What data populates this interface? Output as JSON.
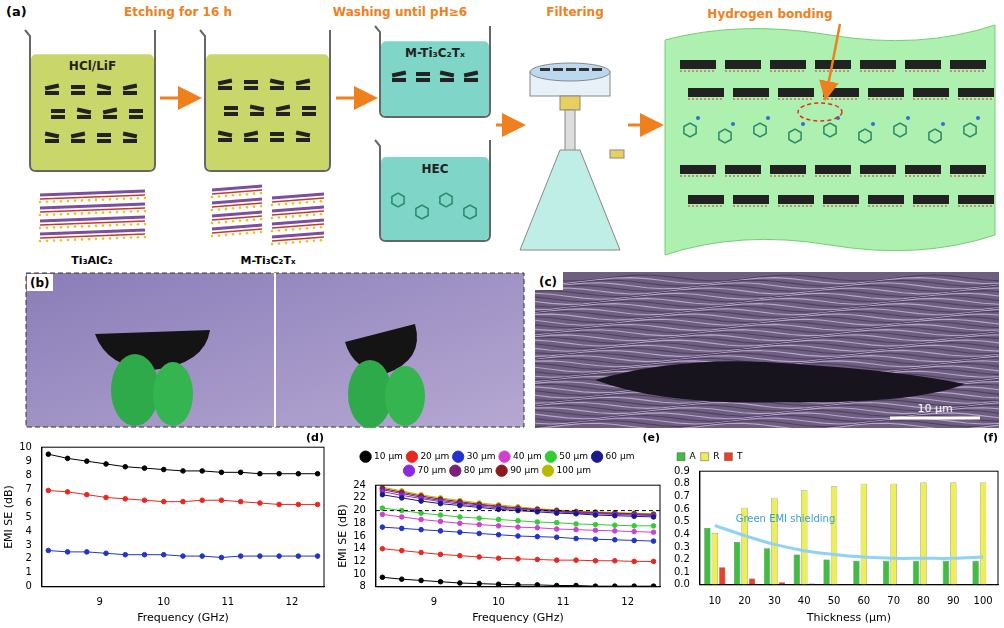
{
  "diagram": {
    "label": "(a)",
    "steps": [
      "Etching for 16 h",
      "Washing until pH≥6",
      "Filtering"
    ],
    "beakers": [
      "HCl/LiF",
      "M-Ti₃C₂Tₓ",
      "HEC"
    ],
    "materials": [
      "Ti₃AlC₂",
      "M-Ti₃C₂Tₓ"
    ],
    "annotation": "Hydrogen bonding"
  },
  "photo": {
    "label": "(b)"
  },
  "micrograph": {
    "label": "(c)",
    "scale_bar": "10 μm"
  },
  "chart_data": [
    {
      "type": "line",
      "title": "(d)",
      "xlabel": "Frequency (GHz)",
      "ylabel": "EMI SE (dB)",
      "x": [
        8.2,
        8.5,
        8.8,
        9.1,
        9.4,
        9.7,
        10.0,
        10.3,
        10.6,
        10.9,
        11.2,
        11.5,
        11.8,
        12.1,
        12.4
      ],
      "xlim": [
        8.1,
        12.5
      ],
      "xticks": [
        9,
        10,
        11,
        12
      ],
      "ylim": [
        0,
        10
      ],
      "yticks": [
        0,
        1,
        2,
        3,
        4,
        5,
        6,
        7,
        8,
        9,
        10
      ],
      "grid": false,
      "marker": "circle",
      "series": [
        {
          "color": "#000000",
          "values": [
            9.5,
            9.2,
            9.0,
            8.8,
            8.6,
            8.5,
            8.4,
            8.3,
            8.3,
            8.2,
            8.2,
            8.1,
            8.1,
            8.1,
            8.1
          ]
        },
        {
          "color": "#e8281e",
          "values": [
            6.9,
            6.8,
            6.6,
            6.4,
            6.3,
            6.2,
            6.1,
            6.1,
            6.2,
            6.2,
            6.1,
            6.0,
            5.9,
            5.9,
            5.9
          ]
        },
        {
          "color": "#2233cc",
          "values": [
            2.6,
            2.5,
            2.5,
            2.4,
            2.3,
            2.3,
            2.3,
            2.2,
            2.2,
            2.1,
            2.2,
            2.2,
            2.2,
            2.2,
            2.2
          ]
        }
      ]
    },
    {
      "type": "line",
      "title": "(e)",
      "xlabel": "Frequency (GHz)",
      "ylabel": "EMI SE (dB)",
      "x": [
        8.2,
        8.5,
        8.8,
        9.1,
        9.4,
        9.7,
        10.0,
        10.3,
        10.6,
        10.9,
        11.2,
        11.5,
        11.8,
        12.1,
        12.4
      ],
      "xlim": [
        8.1,
        12.5
      ],
      "xticks": [
        9,
        10,
        11,
        12
      ],
      "ylim": [
        8,
        24
      ],
      "yticks": [
        8,
        10,
        12,
        14,
        16,
        18,
        20,
        22,
        24
      ],
      "grid": false,
      "marker": "circle",
      "legend": "top",
      "reference_line": 20,
      "series": [
        {
          "name": "10 μm",
          "color": "#000000",
          "values": [
            9.5,
            9.2,
            9.0,
            8.8,
            8.6,
            8.5,
            8.4,
            8.3,
            8.3,
            8.2,
            8.2,
            8.1,
            8.1,
            8.1,
            8.1
          ]
        },
        {
          "name": "20 μm",
          "color": "#e8281e",
          "values": [
            14.0,
            13.7,
            13.4,
            13.1,
            12.9,
            12.7,
            12.5,
            12.4,
            12.3,
            12.2,
            12.2,
            12.1,
            12.1,
            12.0,
            12.0
          ]
        },
        {
          "name": "30 μm",
          "color": "#2233cc",
          "values": [
            17.4,
            17.2,
            17.0,
            16.8,
            16.6,
            16.4,
            16.2,
            16.0,
            15.9,
            15.8,
            15.6,
            15.5,
            15.4,
            15.3,
            15.2
          ]
        },
        {
          "name": "40 μm",
          "color": "#d040d0",
          "values": [
            19.4,
            19.0,
            18.6,
            18.3,
            18.0,
            17.8,
            17.6,
            17.4,
            17.3,
            17.1,
            17.0,
            16.9,
            16.8,
            16.7,
            16.6
          ]
        },
        {
          "name": "50 μm",
          "color": "#33cc33",
          "values": [
            20.4,
            20.0,
            19.6,
            19.3,
            19.0,
            18.8,
            18.6,
            18.4,
            18.2,
            18.1,
            17.9,
            17.8,
            17.7,
            17.6,
            17.6
          ]
        },
        {
          "name": "60 μm",
          "color": "#1a1a8c",
          "values": [
            22.5,
            22.0,
            21.5,
            21.1,
            20.8,
            20.5,
            20.2,
            20.0,
            19.8,
            19.6,
            19.5,
            19.3,
            19.2,
            19.1,
            19.0
          ]
        },
        {
          "name": "70 μm",
          "color": "#8a2be2",
          "values": [
            23.0,
            22.4,
            21.9,
            21.4,
            21.0,
            20.7,
            20.4,
            20.2,
            20.0,
            19.8,
            19.6,
            19.5,
            19.4,
            19.3,
            19.2
          ]
        },
        {
          "name": "80 μm",
          "color": "#7a1f7a",
          "values": [
            23.3,
            22.7,
            22.1,
            21.6,
            21.2,
            20.9,
            20.6,
            20.3,
            20.1,
            19.9,
            19.7,
            19.6,
            19.5,
            19.4,
            19.3
          ]
        },
        {
          "name": "90 μm",
          "color": "#8b1a1a",
          "values": [
            23.5,
            22.9,
            22.3,
            21.8,
            21.4,
            21.0,
            20.7,
            20.4,
            20.2,
            20.0,
            19.8,
            19.7,
            19.6,
            19.5,
            19.4
          ]
        },
        {
          "name": "100 μm",
          "color": "#b8b800",
          "values": [
            23.7,
            23.1,
            22.5,
            22.0,
            21.6,
            21.2,
            20.9,
            20.6,
            20.3,
            20.1,
            19.9,
            19.8,
            19.7,
            19.6,
            19.5
          ]
        }
      ]
    },
    {
      "type": "bar",
      "title": "(f)",
      "xlabel": "Thickness (μm)",
      "categories": [
        "10",
        "20",
        "30",
        "40",
        "50",
        "60",
        "70",
        "80",
        "90",
        "100"
      ],
      "ylim": [
        0,
        0.9
      ],
      "yticks": [
        {
          "value": 0,
          "label": "0.0"
        },
        0.1,
        0.2,
        0.3,
        0.4,
        0.5,
        0.6,
        0.7,
        0.8,
        0.9
      ],
      "grid": false,
      "legend": "top-left",
      "annotation": "Green EMI shielding",
      "series": [
        {
          "name": "A",
          "color": "#3fbf3f",
          "values": [
            0.45,
            0.34,
            0.29,
            0.24,
            0.2,
            0.19,
            0.19,
            0.19,
            0.19,
            0.19
          ]
        },
        {
          "name": "R",
          "color": "#eeee55",
          "values": [
            0.41,
            0.61,
            0.69,
            0.75,
            0.78,
            0.8,
            0.8,
            0.81,
            0.81,
            0.81
          ]
        },
        {
          "name": "T",
          "color": "#e8402a",
          "values": [
            0.14,
            0.05,
            0.02,
            0.01,
            0.005,
            0,
            0,
            0,
            0,
            0
          ]
        },
        {
          "type": "line",
          "color": "#8fd3f0",
          "values": [
            0.47,
            0.39,
            0.32,
            0.27,
            0.24,
            0.22,
            0.21,
            0.21,
            0.21,
            0.22
          ]
        }
      ]
    }
  ]
}
